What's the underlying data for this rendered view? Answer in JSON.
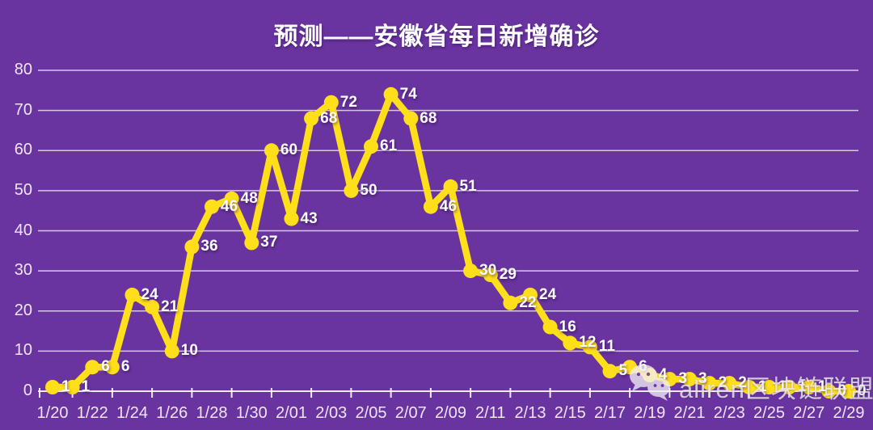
{
  "page": {
    "background_color": "#6A34A0",
    "grid_color": "rgba(243,237,250,0.8)",
    "axis_color": "rgba(248,243,252,0.95)"
  },
  "chart_data": {
    "type": "line",
    "title": "预测——安徽省每日新增确诊",
    "x": [
      "1/20",
      "1/21",
      "1/22",
      "1/23",
      "1/24",
      "1/25",
      "1/26",
      "1/27",
      "1/28",
      "1/29",
      "1/30",
      "1/31",
      "2/01",
      "2/02",
      "2/03",
      "2/04",
      "2/05",
      "2/06",
      "2/07",
      "2/08",
      "2/09",
      "2/10",
      "2/11",
      "2/12",
      "2/13",
      "2/14",
      "2/15",
      "2/16",
      "2/17",
      "2/18",
      "2/19",
      "2/20",
      "2/21",
      "2/22",
      "2/23",
      "2/24",
      "2/25",
      "2/26",
      "2/27",
      "2/28",
      "2/29"
    ],
    "values": [
      1,
      1,
      6,
      6,
      24,
      21,
      10,
      36,
      46,
      48,
      37,
      60,
      43,
      68,
      72,
      50,
      61,
      74,
      68,
      46,
      51,
      30,
      29,
      22,
      24,
      16,
      12,
      11,
      5,
      6,
      4,
      3,
      3,
      2,
      2,
      1,
      1,
      1,
      1,
      0,
      0
    ],
    "x_tick_labels": [
      "1/20",
      "1/22",
      "1/24",
      "1/26",
      "1/28",
      "1/30",
      "2/01",
      "2/03",
      "2/05",
      "2/07",
      "2/09",
      "2/11",
      "2/13",
      "2/15",
      "2/17",
      "2/19",
      "2/21",
      "2/23",
      "2/25",
      "2/27",
      "2/29"
    ],
    "y_ticks": [
      0,
      10,
      20,
      30,
      40,
      50,
      60,
      70,
      80
    ],
    "ylim": [
      0,
      80
    ],
    "grid": "horizontal gridlines on",
    "legend": "none",
    "line_color": "#FFDE1A",
    "marker": "circle",
    "data_label_color": "#FFFFFF",
    "data_labels": "every point, white bold, right of marker"
  },
  "watermark": {
    "icon": "wechat-icon",
    "text": "aliren区块链联盟"
  }
}
